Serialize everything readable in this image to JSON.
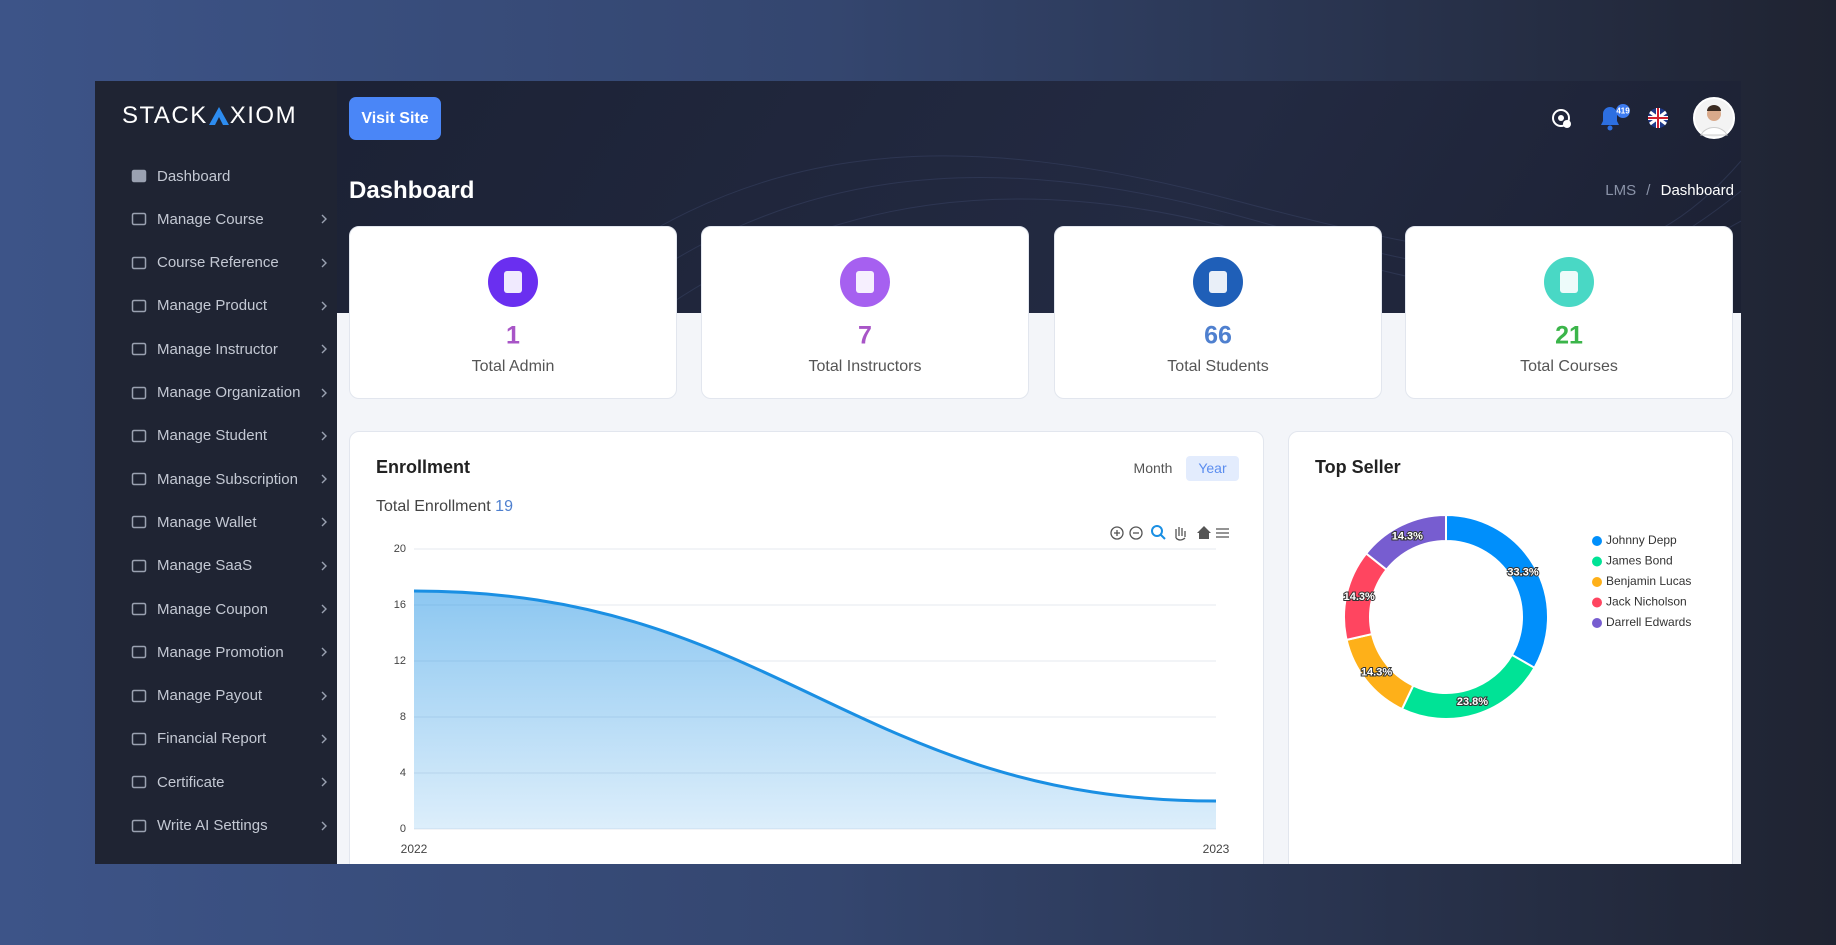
{
  "brand": {
    "left": "STACK",
    "right": "XIOM"
  },
  "sidebar": [
    "Dashboard",
    "Manage Course",
    "Course Reference",
    "Manage Product",
    "Manage Instructor",
    "Manage Organization",
    "Manage Student",
    "Manage Subscription",
    "Manage Wallet",
    "Manage SaaS",
    "Manage Coupon",
    "Manage Promotion",
    "Manage Payout",
    "Financial Report",
    "Certificate",
    "Write AI Settings"
  ],
  "header": {
    "button": "Visit Site",
    "badge": "419",
    "title": "Dashboard",
    "breadcrumb": [
      "LMS",
      "Dashboard"
    ]
  },
  "stats": [
    {
      "value": 1,
      "label": "Total Admin",
      "color": "#a855c7",
      "icon_color": "#6a2ff0"
    },
    {
      "value": 7,
      "label": "Total Instructors",
      "color": "#a855c7",
      "icon_color": "#a660f0"
    },
    {
      "value": 66,
      "label": "Total Students",
      "color": "#4f80cf",
      "icon_color": "#1f5fb8"
    },
    {
      "value": 21,
      "label": "Total Courses",
      "color": "#3bb54a",
      "icon_color": "#49d8c5"
    }
  ],
  "enrollment": {
    "toggle": [
      "Month",
      "Year"
    ],
    "toggle_active": 1,
    "total_label": "Total Enrollment",
    "total": 19
  },
  "chart_data": [
    {
      "type": "area",
      "title": "Enrollment",
      "x": [
        "2022",
        "2023"
      ],
      "values": [
        17,
        2
      ],
      "color": "#1a8fe3",
      "ylim": [
        0,
        20
      ],
      "yticks": [
        0,
        4,
        8,
        12,
        16,
        20
      ],
      "grid": true
    },
    {
      "type": "donut",
      "title": "Top Seller",
      "categories": [
        "Johnny Depp",
        "James Bond",
        "Benjamin Lucas",
        "Jack Nicholson",
        "Darrell Edwards"
      ],
      "values": [
        33.3,
        23.8,
        14.3,
        14.3,
        14.3
      ],
      "value_labels": [
        "33.3%",
        "23.8%",
        "14.3%",
        "14.3%",
        "14.3%"
      ],
      "colors": [
        "#008ffb",
        "#00e396",
        "#feb019",
        "#ff4560",
        "#775dd0"
      ],
      "legend": "right"
    }
  ]
}
